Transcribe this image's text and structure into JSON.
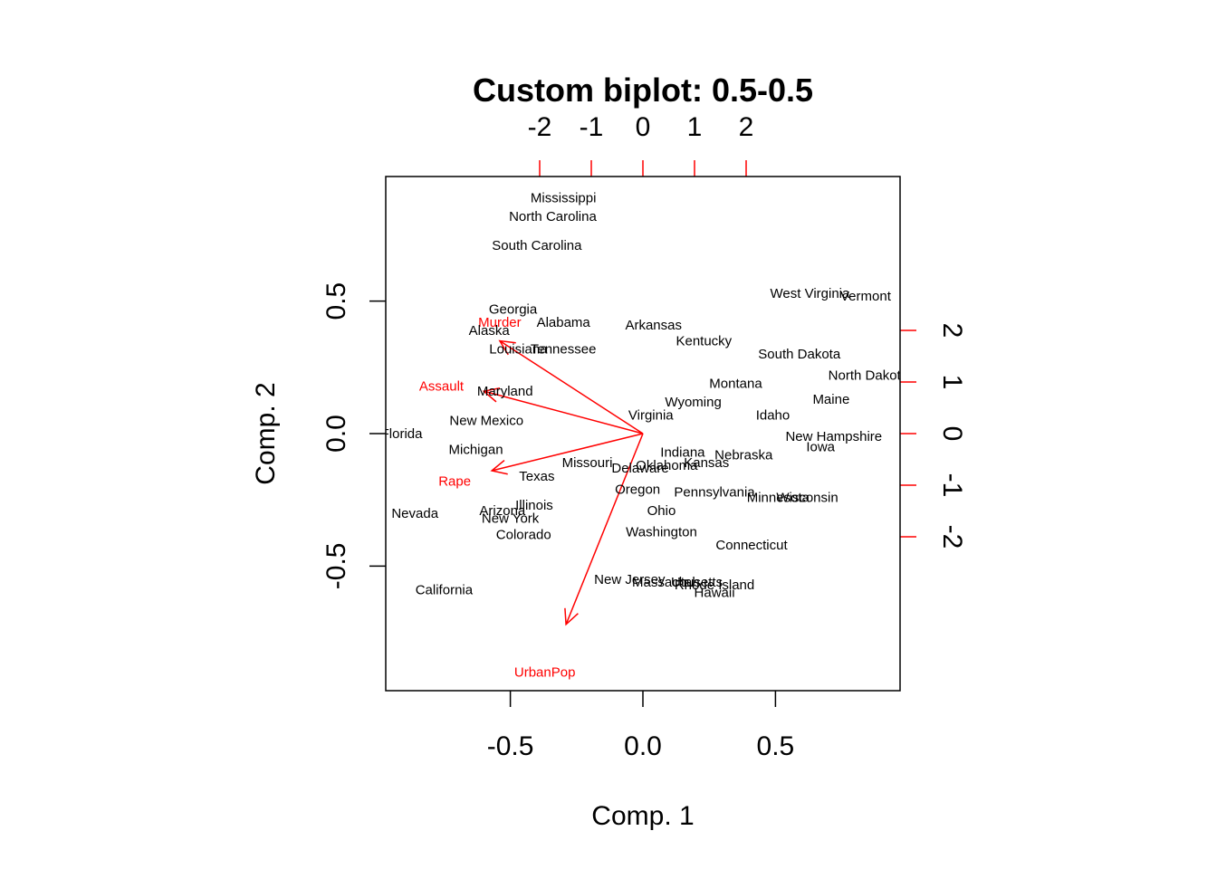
{
  "chart_data": {
    "type": "scatter",
    "title": "Custom biplot: 0.5-0.5",
    "xlabel": "Comp. 1",
    "ylabel": "Comp. 2",
    "xlim": [
      -0.97,
      0.97
    ],
    "ylim": [
      -0.97,
      0.97
    ],
    "top_xlim": [
      -2.0,
      2.0
    ],
    "right_ylim": [
      -2.0,
      2.0
    ],
    "bottom_ticks": [
      "-0.5",
      "0.0",
      "0.5"
    ],
    "left_ticks": [
      "-0.5",
      "0.0",
      "0.5"
    ],
    "top_ticks": [
      "-2",
      "-1",
      "0",
      "1",
      "2"
    ],
    "right_ticks": [
      "-2",
      "-1",
      "0",
      "1",
      "2"
    ],
    "label_color": "#000000",
    "arrow_color": "#ff0000",
    "observations": [
      {
        "label": "Mississippi",
        "x": -0.3,
        "y": 0.89
      },
      {
        "label": "North Carolina",
        "x": -0.34,
        "y": 0.82
      },
      {
        "label": "South Carolina",
        "x": -0.4,
        "y": 0.71
      },
      {
        "label": "West Virginia",
        "x": 0.63,
        "y": 0.53
      },
      {
        "label": "Vermont",
        "x": 0.84,
        "y": 0.52
      },
      {
        "label": "Georgia",
        "x": -0.49,
        "y": 0.47
      },
      {
        "label": "Alabama",
        "x": -0.3,
        "y": 0.42
      },
      {
        "label": "Alaska",
        "x": -0.58,
        "y": 0.39
      },
      {
        "label": "Arkansas",
        "x": 0.04,
        "y": 0.41
      },
      {
        "label": "Kentucky",
        "x": 0.23,
        "y": 0.35
      },
      {
        "label": "Louisiana",
        "x": -0.47,
        "y": 0.32
      },
      {
        "label": "Tennessee",
        "x": -0.3,
        "y": 0.32
      },
      {
        "label": "South Dakota",
        "x": 0.59,
        "y": 0.3
      },
      {
        "label": "North Dakota",
        "x": 0.85,
        "y": 0.22
      },
      {
        "label": "Montana",
        "x": 0.35,
        "y": 0.19
      },
      {
        "label": "Maryland",
        "x": -0.52,
        "y": 0.16
      },
      {
        "label": "Maine",
        "x": 0.71,
        "y": 0.13
      },
      {
        "label": "Wyoming",
        "x": 0.19,
        "y": 0.12
      },
      {
        "label": "Virginia",
        "x": 0.03,
        "y": 0.07
      },
      {
        "label": "Idaho",
        "x": 0.49,
        "y": 0.07
      },
      {
        "label": "New Mexico",
        "x": -0.59,
        "y": 0.05
      },
      {
        "label": "Florida",
        "x": -0.91,
        "y": 0.0
      },
      {
        "label": "New Hampshire",
        "x": 0.72,
        "y": -0.01
      },
      {
        "label": "Iowa",
        "x": 0.67,
        "y": -0.05
      },
      {
        "label": "Michigan",
        "x": -0.63,
        "y": -0.06
      },
      {
        "label": "Indiana",
        "x": 0.15,
        "y": -0.07
      },
      {
        "label": "Nebraska",
        "x": 0.38,
        "y": -0.08
      },
      {
        "label": "Missouri",
        "x": -0.21,
        "y": -0.11
      },
      {
        "label": "Kansas",
        "x": 0.24,
        "y": -0.11
      },
      {
        "label": "Oklahoma",
        "x": 0.09,
        "y": -0.12
      },
      {
        "label": "Delaware",
        "x": -0.01,
        "y": -0.13
      },
      {
        "label": "Texas",
        "x": -0.4,
        "y": -0.16
      },
      {
        "label": "Oregon",
        "x": -0.02,
        "y": -0.21
      },
      {
        "label": "Pennsylvania",
        "x": 0.27,
        "y": -0.22
      },
      {
        "label": "Minnesota",
        "x": 0.51,
        "y": -0.24
      },
      {
        "label": "Wisconsin",
        "x": 0.62,
        "y": -0.24
      },
      {
        "label": "Illinois",
        "x": -0.41,
        "y": -0.27
      },
      {
        "label": "Nevada",
        "x": -0.86,
        "y": -0.3
      },
      {
        "label": "Arizona",
        "x": -0.53,
        "y": -0.29
      },
      {
        "label": "Ohio",
        "x": 0.07,
        "y": -0.29
      },
      {
        "label": "New York",
        "x": -0.5,
        "y": -0.32
      },
      {
        "label": "Colorado",
        "x": -0.45,
        "y": -0.38
      },
      {
        "label": "Washington",
        "x": 0.07,
        "y": -0.37
      },
      {
        "label": "Connecticut",
        "x": 0.41,
        "y": -0.42
      },
      {
        "label": "New Jersey",
        "x": -0.05,
        "y": -0.55
      },
      {
        "label": "Massachusetts",
        "x": 0.13,
        "y": -0.56
      },
      {
        "label": "Utah",
        "x": 0.16,
        "y": -0.56
      },
      {
        "label": "Rhode Island",
        "x": 0.27,
        "y": -0.57
      },
      {
        "label": "Hawaii",
        "x": 0.27,
        "y": -0.6
      },
      {
        "label": "California",
        "x": -0.75,
        "y": -0.59
      }
    ],
    "loadings": [
      {
        "label": "Murder",
        "x": -0.54,
        "y": 0.42,
        "tip_x": -0.54,
        "tip_y": 0.35
      },
      {
        "label": "Assault",
        "x": -0.76,
        "y": 0.18,
        "tip_x": -0.6,
        "tip_y": 0.16
      },
      {
        "label": "Rape",
        "x": -0.71,
        "y": -0.18,
        "tip_x": -0.57,
        "tip_y": -0.14
      },
      {
        "label": "UrbanPop",
        "x": -0.37,
        "y": -0.9,
        "tip_x": -0.29,
        "tip_y": -0.72
      }
    ]
  }
}
